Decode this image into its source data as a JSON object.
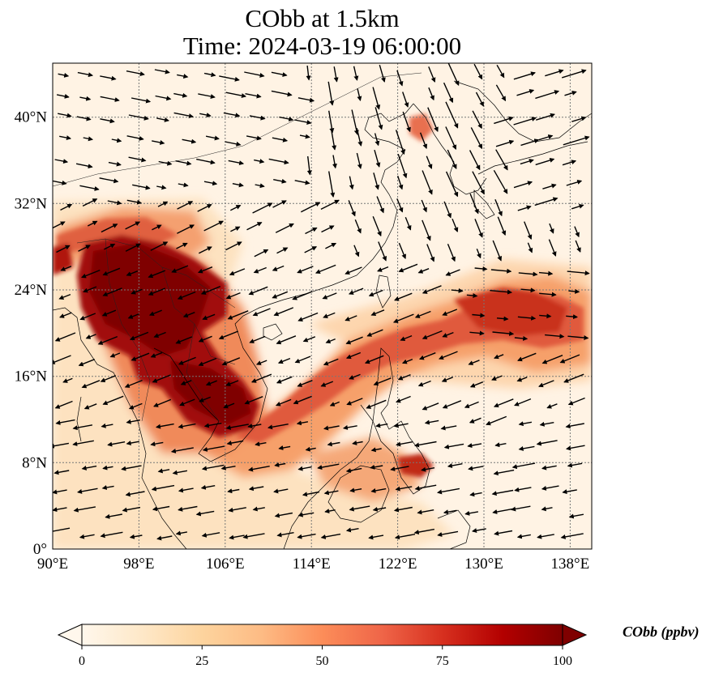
{
  "title": {
    "line1": "CObb at 1.5km",
    "line2": "Time: 2024-03-19 06:00:00"
  },
  "map": {
    "variable": "CObb",
    "level": "1.5km",
    "lon_range": [
      90,
      140
    ],
    "lat_range": [
      0,
      45
    ],
    "lon_ticks": [
      "90°E",
      "98°E",
      "106°E",
      "114°E",
      "122°E",
      "130°E",
      "138°E"
    ],
    "lat_ticks": [
      "0°",
      "8°N",
      "16°N",
      "24°N",
      "32°N",
      "40°N"
    ],
    "gridlines": true,
    "wind_vectors": true,
    "coastlines": true
  },
  "colorbar": {
    "label": "CObb (ppbv)",
    "ticks": [
      "0",
      "25",
      "50",
      "75",
      "100"
    ],
    "range": [
      0,
      100
    ],
    "extend": "both",
    "colormap": "OrRd",
    "colors": [
      "#fff7ec",
      "#fee8c8",
      "#fdd49e",
      "#fdbb84",
      "#fc8d59",
      "#ef6548",
      "#d7301f",
      "#b30000",
      "#7f0000"
    ]
  }
}
